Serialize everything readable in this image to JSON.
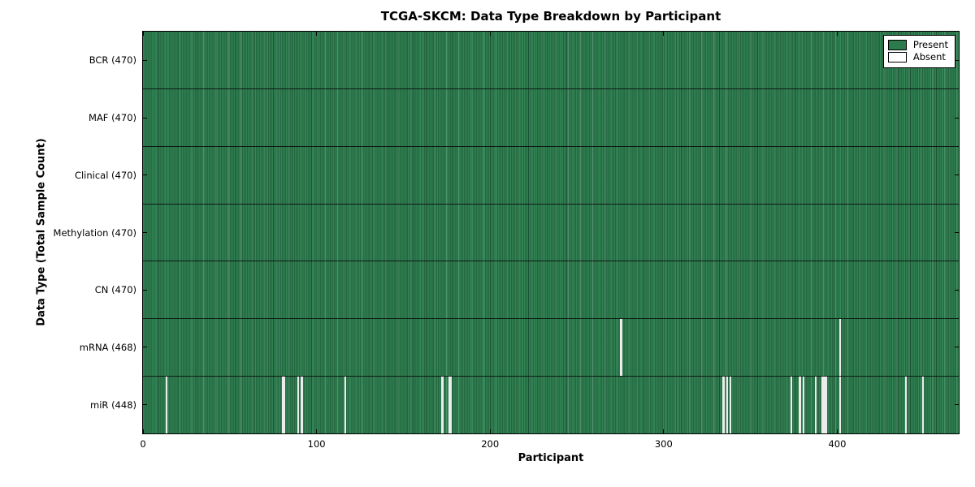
{
  "chart_data": {
    "type": "heatmap",
    "title": "TCGA-SKCM: Data Type Breakdown by Participant",
    "xlabel": "Participant",
    "ylabel": "Data Type (Total Sample Count)",
    "x_range": [
      0,
      470
    ],
    "x_ticks": [
      0,
      100,
      200,
      300,
      400
    ],
    "n_participants": 470,
    "grid": false,
    "legend_position": "upper right",
    "rows": [
      {
        "name": "BCR",
        "label": "BCR (470)",
        "present_count": 470,
        "absent_participants": []
      },
      {
        "name": "MAF",
        "label": "MAF (470)",
        "present_count": 470,
        "absent_participants": []
      },
      {
        "name": "Clinical",
        "label": "Clinical (470)",
        "present_count": 470,
        "absent_participants": []
      },
      {
        "name": "Methylation",
        "label": "Methylation (470)",
        "present_count": 470,
        "absent_participants": []
      },
      {
        "name": "CN",
        "label": "CN (470)",
        "present_count": 470,
        "absent_participants": []
      },
      {
        "name": "mRNA",
        "label": "mRNA (468)",
        "present_count": 468,
        "absent_participants": [
          275,
          401
        ]
      },
      {
        "name": "miR",
        "label": "miR (448)",
        "present_count": 448,
        "absent_participants": [
          13,
          80,
          81,
          89,
          91,
          116,
          172,
          176,
          177,
          334,
          336,
          338,
          373,
          378,
          380,
          387,
          391,
          392,
          393,
          401,
          439,
          449
        ]
      }
    ],
    "legend": [
      {
        "label": "Present",
        "color": "#2d7b4d"
      },
      {
        "label": "Absent",
        "color": "#ffffff"
      }
    ],
    "colors": {
      "present": "#2d7b4d",
      "present_edge": "#1a5233",
      "absent_gap": "#ececec",
      "separator": "#0a0a0a",
      "background": "#ffffff"
    }
  }
}
